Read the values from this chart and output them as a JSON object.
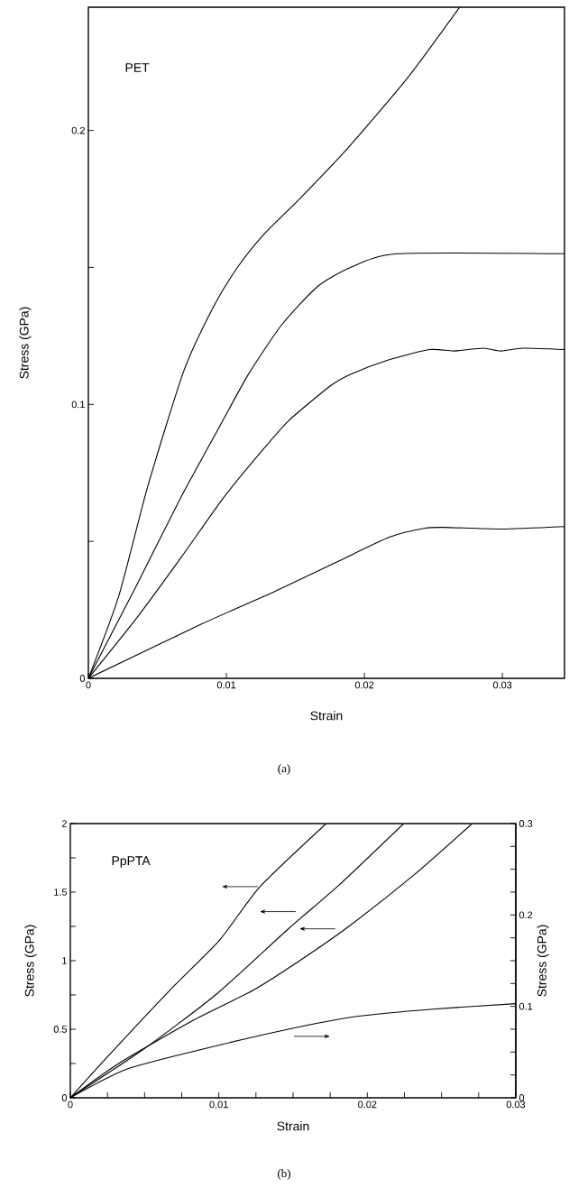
{
  "chart_data": [
    {
      "type": "line",
      "xlabel": "Strain",
      "ylabel": "Stress (GPa)",
      "annotations": [
        "PET",
        "(a)"
      ],
      "xlim": [
        0,
        0.0345
      ],
      "ylim": [
        0,
        0.245
      ],
      "xticks": [
        0,
        0.01,
        0.02,
        0.03
      ],
      "yticks": [
        0,
        {
          "value": 0.05,
          "label": null
        },
        0.1,
        {
          "value": 0.15,
          "label": null
        },
        0.2
      ],
      "series": [
        {
          "color": "#000000",
          "x": [
            0,
            0.0022,
            0.0043,
            0.0069,
            0.009,
            0.0108,
            0.0127,
            0.0153,
            0.0187,
            0.0231,
            0.0269
          ],
          "values": [
            0,
            0.03,
            0.07,
            0.112,
            0.135,
            0.15,
            0.162,
            0.175,
            0.193,
            0.219,
            0.245
          ]
        },
        {
          "color": "#000000",
          "x": [
            0,
            0.0035,
            0.0067,
            0.0093,
            0.0116,
            0.014,
            0.0166,
            0.019,
            0.0224,
            0.0345
          ],
          "values": [
            0,
            0.034,
            0.066,
            0.09,
            0.111,
            0.129,
            0.143,
            0.15,
            0.155,
            0.155
          ]
        },
        {
          "color": "#000000",
          "x": [
            0,
            0.0035,
            0.0067,
            0.0098,
            0.0124,
            0.0145,
            0.0176,
            0.019,
            0.0216,
            0.0247,
            0.0265,
            0.0286,
            0.0299,
            0.0315,
            0.0345
          ],
          "values": [
            0,
            0.022,
            0.044,
            0.066,
            0.082,
            0.094,
            0.107,
            0.111,
            0.116,
            0.12,
            0.1195,
            0.1205,
            0.1195,
            0.1205,
            0.12
          ]
        },
        {
          "color": "#000000",
          "x": [
            0,
            0.0082,
            0.0135,
            0.0179,
            0.0218,
            0.0244,
            0.0258,
            0.0299,
            0.0345
          ],
          "values": [
            0,
            0.0198,
            0.0317,
            0.0422,
            0.0515,
            0.0548,
            0.0551,
            0.0545,
            0.0554
          ]
        }
      ]
    },
    {
      "type": "line",
      "xlabel": "Strain",
      "ylabel": "Stress (GPa)",
      "y2label": "Stress (GPa)",
      "annotations": [
        "PpPTA",
        "(b)"
      ],
      "xlim": [
        0,
        0.03
      ],
      "ylim": [
        0,
        2
      ],
      "y2lim": [
        0,
        0.3
      ],
      "xticks": [
        0,
        {
          "value": 0.0025,
          "label": null
        },
        {
          "value": 0.005,
          "label": null
        },
        {
          "value": 0.0075,
          "label": null
        },
        0.01,
        {
          "value": 0.0125,
          "label": null
        },
        {
          "value": 0.015,
          "label": null
        },
        {
          "value": 0.0175,
          "label": null
        },
        0.02,
        {
          "value": 0.0225,
          "label": null
        },
        {
          "value": 0.025,
          "label": null
        },
        {
          "value": 0.0275,
          "label": null
        },
        0.03
      ],
      "yticks": [
        0,
        {
          "value": 0.25,
          "label": null
        },
        0.5,
        {
          "value": 0.75,
          "label": null
        },
        1,
        {
          "value": 1.25,
          "label": null
        },
        1.5,
        {
          "value": 1.75,
          "label": null
        },
        2
      ],
      "y2ticks": [
        0,
        {
          "value": 0.025,
          "label": null
        },
        {
          "value": 0.05,
          "label": null
        },
        {
          "value": 0.075,
          "label": null
        },
        0.1,
        {
          "value": 0.125,
          "label": null
        },
        {
          "value": 0.15,
          "label": null
        },
        {
          "value": 0.175,
          "label": null
        },
        0.2,
        {
          "value": 0.225,
          "label": null
        },
        {
          "value": 0.25,
          "label": null
        },
        {
          "value": 0.275,
          "label": null
        },
        0.3
      ],
      "series": [
        {
          "color": "#000000",
          "x": [
            0,
            0.00255,
            0.00667,
            0.01007,
            0.01274,
            0.01723
          ],
          "values": [
            0,
            0.305,
            0.781,
            1.152,
            1.536,
            2.0
          ]
        },
        {
          "color": "#000000",
          "x": [
            0,
            0.00498,
            0.00983,
            0.01468,
            0.01808,
            0.02245
          ],
          "values": [
            0,
            0.358,
            0.755,
            1.232,
            1.55,
            2.0
          ]
        },
        {
          "color": "#000000",
          "x": [
            0,
            0.00328,
            0.00837,
            0.01226,
            0.01517,
            0.01869,
            0.02318,
            0.02706
          ],
          "values": [
            0,
            0.252,
            0.57,
            0.781,
            0.98,
            1.245,
            1.629,
            2.0
          ]
        },
        {
          "color": "#000000",
          "axis": "y2",
          "x": [
            0,
            0.00376,
            0.00886,
            0.01468,
            0.0193,
            0.0244,
            0.03
          ],
          "values": [
            0,
            0.031,
            0.053,
            0.075,
            0.089,
            0.097,
            0.103
          ]
        }
      ]
    }
  ]
}
